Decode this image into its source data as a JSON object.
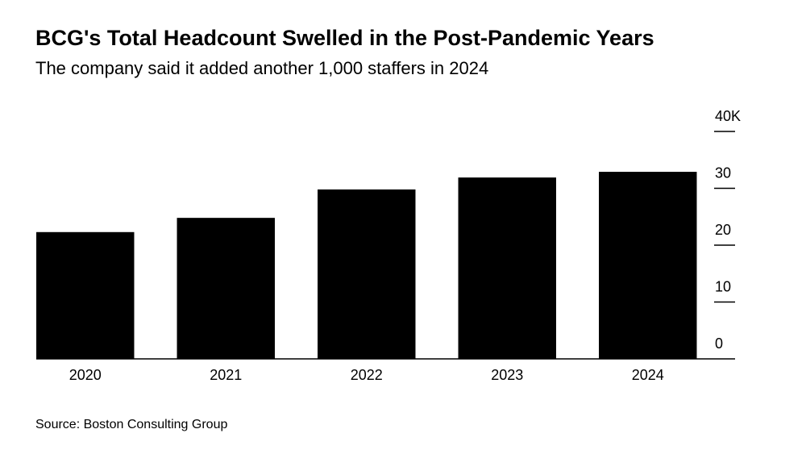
{
  "chart_data": {
    "type": "bar",
    "title": "BCG's Total Headcount Swelled in the Post-Pandemic Years",
    "subtitle": "The company said it added another 1,000 staffers in 2024",
    "source": "Source: Boston Consulting Group",
    "categories": [
      "2020",
      "2021",
      "2022",
      "2023",
      "2024"
    ],
    "values": [
      22.3,
      24.8,
      29.8,
      31.9,
      32.9
    ],
    "color": "#000000",
    "ylim": [
      0,
      40
    ],
    "yticks": [
      0,
      10,
      20,
      30,
      {
        "value": 40,
        "label": "40K"
      }
    ],
    "y_axis_side": "right"
  }
}
